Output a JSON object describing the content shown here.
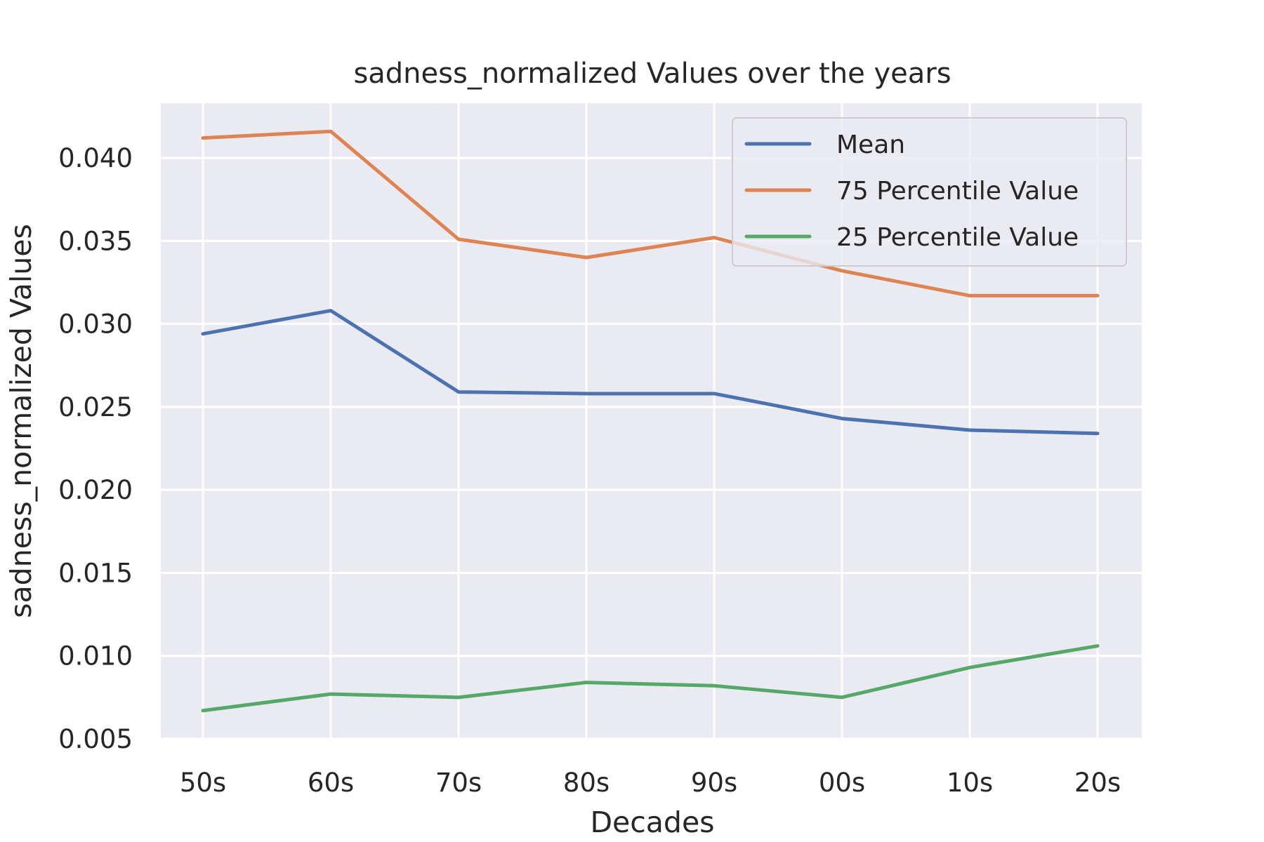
{
  "chart_data": {
    "type": "line",
    "title": "sadness_normalized Values over the years",
    "xlabel": "Decades",
    "ylabel": "sadness_normalized Values",
    "categories": [
      "50s",
      "60s",
      "70s",
      "80s",
      "90s",
      "00s",
      "10s",
      "20s"
    ],
    "ylim": [
      0.005,
      0.0433
    ],
    "yticks": [
      0.005,
      0.01,
      0.015,
      0.02,
      0.025,
      0.03,
      0.035,
      0.04
    ],
    "ytick_labels": [
      "0.005",
      "0.010",
      "0.015",
      "0.020",
      "0.025",
      "0.030",
      "0.035",
      "0.040"
    ],
    "grid": true,
    "legend_position": "top-right",
    "background_color": "#eaeaf2",
    "grid_color": "#ffffff",
    "series": [
      {
        "name": "Mean",
        "color": "#4c72b0",
        "values": [
          0.0294,
          0.0308,
          0.0259,
          0.0258,
          0.0258,
          0.0243,
          0.0236,
          0.0234
        ]
      },
      {
        "name": "75 Percentile Value",
        "color": "#dd8452",
        "values": [
          0.0412,
          0.0416,
          0.0351,
          0.034,
          0.0352,
          0.0332,
          0.0317,
          0.0317
        ]
      },
      {
        "name": "25 Percentile Value",
        "color": "#55a868",
        "values": [
          0.0067,
          0.0077,
          0.0075,
          0.0084,
          0.0082,
          0.0075,
          0.0093,
          0.0106
        ]
      }
    ]
  }
}
